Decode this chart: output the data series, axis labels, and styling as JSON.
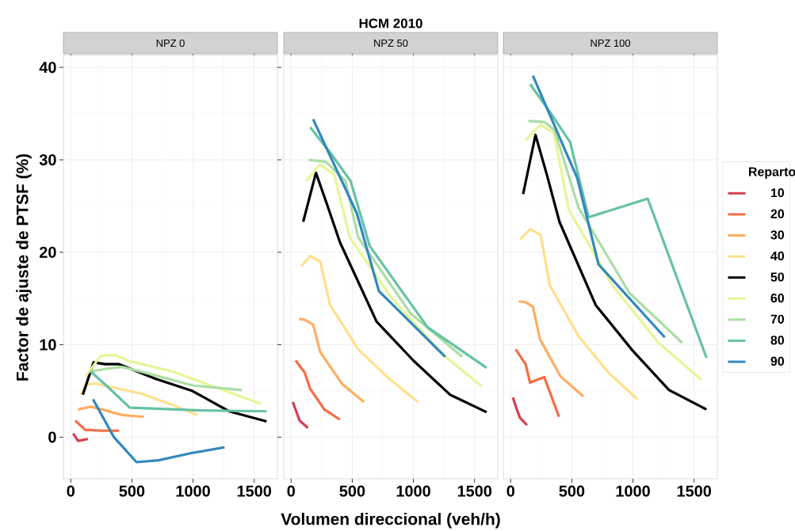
{
  "chart_data": [
    {
      "type": "line",
      "title": "NPZ 0",
      "ylabel": "Factor de ajuste de PTSF (%)",
      "xlim": [
        -60,
        1690
      ],
      "ylim": [
        -4.5,
        41.3
      ],
      "xticks": [
        0,
        500,
        1000,
        1500
      ],
      "yticks": [
        0,
        10,
        20,
        30,
        40
      ],
      "grid": true,
      "series": [
        {
          "color": "#d53e4f",
          "x": [
            20,
            60,
            140
          ],
          "values": [
            0.4,
            -0.4,
            -0.2
          ]
        },
        {
          "color": "#f46d43",
          "x": [
            37,
            118,
            256,
            395
          ],
          "values": [
            1.8,
            0.8,
            0.7,
            0.7
          ]
        },
        {
          "color": "#fdae61",
          "x": [
            60,
            164,
            256,
            418,
            598
          ],
          "values": [
            3.0,
            3.3,
            3.0,
            2.4,
            2.2
          ]
        },
        {
          "color": "#fee08b",
          "x": [
            83,
            129,
            210,
            372,
            580,
            810,
            1036
          ],
          "values": [
            4.6,
            5.7,
            5.8,
            5.3,
            4.7,
            3.6,
            2.4
          ]
        },
        {
          "color": "#000000",
          "x": [
            99,
            187,
            279,
            395,
            695,
            995,
            1295,
            1601
          ],
          "values": [
            4.6,
            8.1,
            7.9,
            7.9,
            6.3,
            5.0,
            2.8,
            1.7
          ]
        },
        {
          "color": "#e6f598",
          "x": [
            122,
            245,
            360,
            487,
            834,
            1203,
            1556
          ],
          "values": [
            6.6,
            8.8,
            8.9,
            8.2,
            7.1,
            5.3,
            3.6
          ]
        },
        {
          "color": "#abdda4",
          "x": [
            164,
            291,
            418,
            602,
            995,
            1399
          ],
          "values": [
            7.1,
            7.4,
            7.6,
            7.0,
            5.6,
            5.1
          ]
        },
        {
          "color": "#66c2a5",
          "x": [
            164,
            314,
            482,
            1064,
            1601
          ],
          "values": [
            7.1,
            5.3,
            3.2,
            2.9,
            2.8
          ]
        },
        {
          "color": "#3288bd",
          "x": [
            182,
            353,
            538,
            718,
            995,
            1258
          ],
          "values": [
            4.1,
            0.0,
            -2.7,
            -2.5,
            -1.7,
            -1.1
          ]
        }
      ]
    },
    {
      "type": "line",
      "title": "NPZ 50",
      "annotations": [
        "HCM 2010"
      ],
      "xlabel": "Volumen direccional (veh/h)",
      "xlim": [
        -60,
        1690
      ],
      "ylim": [
        -4.5,
        41.3
      ],
      "xticks": [
        0,
        500,
        1000,
        1500
      ],
      "yticks": [
        0,
        10,
        20,
        30,
        40
      ],
      "grid": true,
      "tick_labels": "x",
      "series": [
        {
          "color": "#d53e4f",
          "x": [
            14,
            42,
            69,
            138
          ],
          "values": [
            3.8,
            2.8,
            1.8,
            1.0
          ]
        },
        {
          "color": "#f46d43",
          "x": [
            37,
            111,
            157,
            272,
            399
          ],
          "values": [
            8.3,
            7.0,
            5.2,
            3.0,
            1.9
          ]
        },
        {
          "color": "#fdae61",
          "x": [
            65,
            111,
            180,
            238,
            415,
            595
          ],
          "values": [
            12.8,
            12.7,
            12.2,
            9.2,
            5.8,
            3.8
          ]
        },
        {
          "color": "#fee08b",
          "x": [
            83,
            157,
            238,
            318,
            549,
            803,
            1038
          ],
          "values": [
            18.5,
            19.6,
            19.0,
            14.3,
            9.5,
            6.3,
            3.8
          ]
        },
        {
          "color": "#000000",
          "x": [
            99,
            203,
            296,
            399,
            699,
            999,
            1299,
            1599
          ],
          "values": [
            23.3,
            28.6,
            25.1,
            21.1,
            12.5,
            8.3,
            4.6,
            2.7
          ]
        },
        {
          "color": "#e6f598",
          "x": [
            122,
            238,
            353,
            480,
            826,
            1253,
            1560
          ],
          "values": [
            27.7,
            29.5,
            28.4,
            21.6,
            15.0,
            8.8,
            5.5
          ]
        },
        {
          "color": "#abdda4",
          "x": [
            145,
            284,
            445,
            549,
            976,
            1399
          ],
          "values": [
            30.0,
            29.8,
            27.7,
            21.6,
            13.4,
            8.7
          ]
        },
        {
          "color": "#66c2a5",
          "x": [
            157,
            330,
            487,
            642,
            1115,
            1599
          ],
          "values": [
            33.5,
            30.6,
            27.7,
            20.7,
            11.9,
            7.5
          ]
        },
        {
          "color": "#3288bd",
          "x": [
            180,
            538,
            718,
            1260
          ],
          "values": [
            34.4,
            24.2,
            15.8,
            8.7
          ]
        }
      ]
    },
    {
      "type": "line",
      "title": "NPZ 100",
      "legend": "right",
      "legend_title": "Reparto",
      "xlim": [
        -60,
        1690
      ],
      "ylim": [
        -4.5,
        41.3
      ],
      "xticks": [
        0,
        500,
        1000,
        1500
      ],
      "yticks": [
        0,
        10,
        20,
        30,
        40
      ],
      "grid": true,
      "tick_labels": "x",
      "series": [
        {
          "name": "10",
          "color": "#d53e4f",
          "x": [
            18,
            48,
            76,
            134
          ],
          "values": [
            4.3,
            3.1,
            2.1,
            1.3
          ]
        },
        {
          "name": "20",
          "color": "#f46d43",
          "x": [
            41,
            122,
            159,
            275,
            395
          ],
          "values": [
            9.5,
            7.9,
            5.9,
            6.5,
            2.2
          ]
        },
        {
          "name": "30",
          "color": "#fdae61",
          "x": [
            67,
            122,
            182,
            240,
            406,
            595
          ],
          "values": [
            14.7,
            14.6,
            14.1,
            10.6,
            6.6,
            4.4
          ]
        },
        {
          "name": "40",
          "color": "#fee08b",
          "x": [
            78,
            159,
            245,
            321,
            556,
            799,
            1036
          ],
          "values": [
            21.4,
            22.5,
            21.9,
            16.4,
            10.9,
            7.0,
            4.1
          ]
        },
        {
          "name": "50",
          "color": "#000000",
          "x": [
            102,
            203,
            298,
            399,
            695,
            995,
            1295,
            1601
          ],
          "values": [
            26.3,
            32.7,
            28.3,
            23.3,
            14.3,
            9.4,
            5.1,
            3.0
          ]
        },
        {
          "name": "60",
          "color": "#e6f598",
          "x": [
            122,
            245,
            353,
            476,
            833,
            1203,
            1560
          ],
          "values": [
            32.1,
            33.8,
            32.9,
            24.6,
            16.4,
            10.3,
            6.2
          ]
        },
        {
          "name": "70",
          "color": "#abdda4",
          "x": [
            145,
            275,
            360,
            556,
            971,
            1403
          ],
          "values": [
            34.2,
            34.1,
            33.2,
            24.8,
            15.6,
            10.2
          ]
        },
        {
          "name": "80",
          "color": "#66c2a5",
          "x": [
            159,
            325,
            487,
            637,
            1121,
            1601
          ],
          "values": [
            38.2,
            35.1,
            31.9,
            23.8,
            25.8,
            8.6
          ]
        },
        {
          "name": "90",
          "color": "#3288bd",
          "x": [
            182,
            545,
            718,
            1260
          ],
          "values": [
            39.1,
            28.0,
            18.7,
            10.8
          ]
        }
      ]
    }
  ]
}
